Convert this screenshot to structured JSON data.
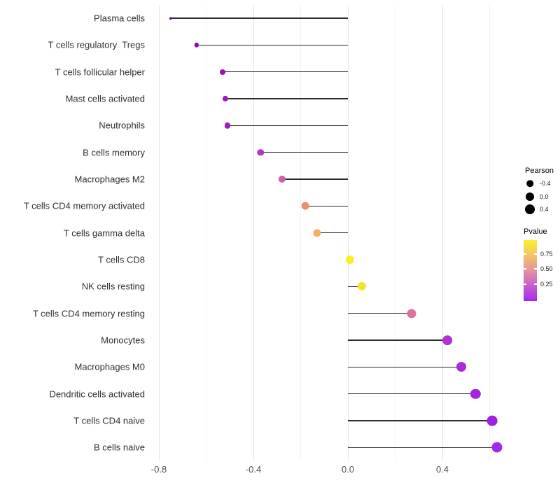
{
  "chart_data": {
    "type": "scatter",
    "subtype": "lollipop",
    "title": "",
    "xlabel": "",
    "ylabel": "",
    "x_axis": {
      "range": [
        -0.84,
        0.7
      ],
      "major_ticks": [
        {
          "value": -0.8,
          "label": "-0.8"
        },
        {
          "value": -0.4,
          "label": "-0.4"
        },
        {
          "value": 0.0,
          "label": "0.0"
        },
        {
          "value": 0.4,
          "label": "0.4"
        }
      ],
      "minor_gridlines": [
        -0.6,
        -0.2,
        0.2,
        0.6
      ],
      "grid": "vertical-only"
    },
    "rows": [
      {
        "label": "Plasma cells",
        "pearson": -0.75,
        "pvalue": 0.02,
        "color": "#7005A8",
        "radius": 1.8
      },
      {
        "label": "T cells regulatory  Tregs",
        "pearson": -0.64,
        "pvalue": 0.07,
        "color": "#8E0CA6",
        "radius": 3.2
      },
      {
        "label": "T cells follicular helper",
        "pearson": -0.53,
        "pvalue": 0.11,
        "color": "#9713AE",
        "radius": 4.0
      },
      {
        "label": "Mast cells activated",
        "pearson": -0.52,
        "pvalue": 0.12,
        "color": "#9C1BBB",
        "radius": 4.1
      },
      {
        "label": "Neutrophils",
        "pearson": -0.51,
        "pvalue": 0.13,
        "color": "#9D1DBE",
        "radius": 4.1
      },
      {
        "label": "B cells memory",
        "pearson": -0.37,
        "pvalue": 0.25,
        "color": "#B136BC",
        "radius": 4.7
      },
      {
        "label": "Macrophages M2",
        "pearson": -0.28,
        "pvalue": 0.42,
        "color": "#CE61A6",
        "radius": 5.1
      },
      {
        "label": "T cells CD4 memory activated",
        "pearson": -0.18,
        "pvalue": 0.6,
        "color": "#E69070",
        "radius": 5.4
      },
      {
        "label": "T cells gamma delta",
        "pearson": -0.13,
        "pvalue": 0.7,
        "color": "#F0B166",
        "radius": 5.6
      },
      {
        "label": "T cells CD8",
        "pearson": 0.01,
        "pvalue": 0.97,
        "color": "#F9F221",
        "radius": 6.0
      },
      {
        "label": "NK cells resting",
        "pearson": 0.06,
        "pvalue": 0.9,
        "color": "#F4E32C",
        "radius": 6.1
      },
      {
        "label": "T cells CD4 memory resting",
        "pearson": 0.27,
        "pvalue": 0.48,
        "color": "#D9739F",
        "radius": 6.5
      },
      {
        "label": "Monocytes",
        "pearson": 0.42,
        "pvalue": 0.2,
        "color": "#B233D2",
        "radius": 6.9
      },
      {
        "label": "Macrophages M0",
        "pearson": 0.48,
        "pvalue": 0.17,
        "color": "#AC2BD8",
        "radius": 7.0
      },
      {
        "label": "Dendritic cells activated",
        "pearson": 0.54,
        "pvalue": 0.14,
        "color": "#A523DC",
        "radius": 7.2
      },
      {
        "label": "T cells CD4 naive",
        "pearson": 0.61,
        "pvalue": 0.11,
        "color": "#9F1FE2",
        "radius": 7.4
      },
      {
        "label": "B cells naive",
        "pearson": 0.63,
        "pvalue": 0.09,
        "color": "#A32BE8",
        "radius": 7.5
      }
    ],
    "stem_color": "#2b2b2b",
    "legend_position": "right"
  },
  "legend": {
    "pearson": {
      "title": "Pearson",
      "dot_color": "#000000",
      "entries": [
        {
          "label": "-0.4",
          "radius": 4.8
        },
        {
          "label": "0.0",
          "radius": 6.0
        },
        {
          "label": "0.4",
          "radius": 7.0
        }
      ]
    },
    "pvalue": {
      "title": "Pvalue",
      "tick_labels": [
        "0.75",
        "0.50",
        "0.25"
      ],
      "gradient_bottom_to_top": [
        "#A62BEA",
        "#BC4BDC",
        "#D26FBE",
        "#E393A0",
        "#EDB37B",
        "#F5D355",
        "#F9F22B"
      ]
    }
  }
}
